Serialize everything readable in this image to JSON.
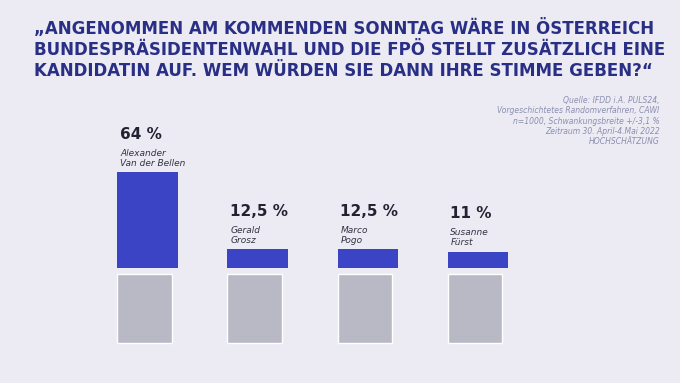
{
  "chart_data": {
    "type": "bar",
    "title": "„ANGENOMMEN AM KOMMENDEN SONNTAG WÄRE IN ÖSTERREICH BUNDESPRÄSIDENTENWAHL UND DIE FPÖ STELLT ZUSÄTZLICH EINE KANDIDATIN AUF. WEM WÜRDEN SIE DANN IHRE STIMME GEBEN?“",
    "annotations": [
      "Quelle: IFDD i.A. PULS24,\nVorgeschichtetes Randomverfahren, CAWI\nn=1000, Schwankungsbreite +/-3,1 %\nZeitraum 30. April-4.Mai 2022\nHOCHSCHÄTZUNG"
    ],
    "categories": [
      "Alexander\nVan der Bellen",
      "Gerald\nGrosz",
      "Marco\nPogo",
      "Susanne\nFürst"
    ],
    "values": [
      64,
      12.5,
      12.5,
      11
    ],
    "value_labels": [
      "64 %",
      "12,5 %",
      "12,5 %",
      "11 %"
    ],
    "data_labels": true,
    "tick_labels": false,
    "ylim": [
      0,
      64
    ],
    "color": "#3a44c4"
  }
}
